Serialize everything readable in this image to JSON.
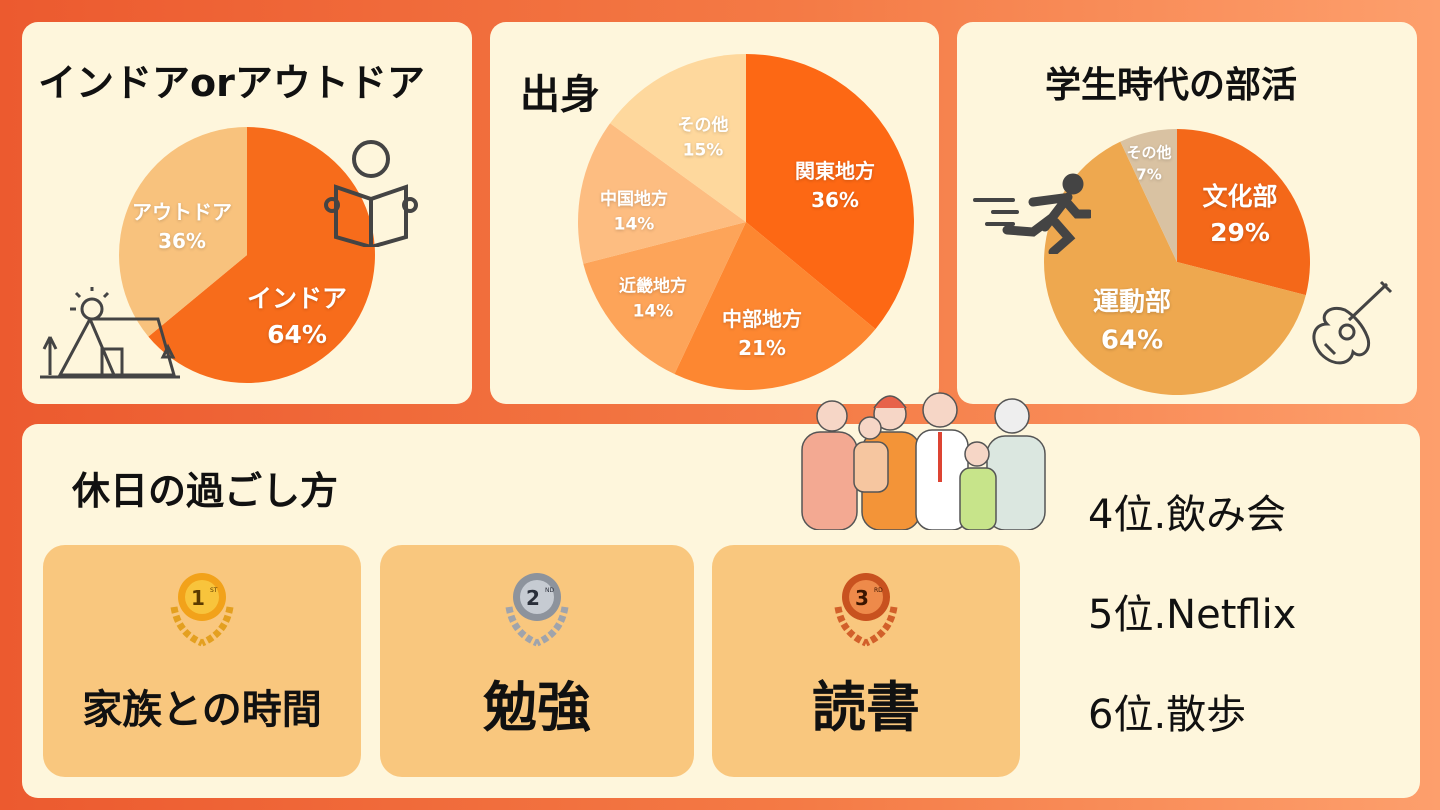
{
  "chart_data": [
    {
      "type": "pie",
      "title": "インドアorアウトドア",
      "slices": [
        {
          "label": "インドア",
          "value": 64,
          "display": "64%",
          "color": "#f76c1b"
        },
        {
          "label": "アウトドア",
          "value": 36,
          "display": "36%",
          "color": "#f8c27d"
        }
      ]
    },
    {
      "type": "pie",
      "title": "出身",
      "slices": [
        {
          "label": "関東地方",
          "value": 36,
          "display": "36%",
          "color": "#fd6814"
        },
        {
          "label": "中部地方",
          "value": 21,
          "display": "21%",
          "color": "#fd8731"
        },
        {
          "label": "近畿地方",
          "value": 14,
          "display": "14%",
          "color": "#fda459"
        },
        {
          "label": "中国地方",
          "value": 14,
          "display": "14%",
          "color": "#fdbd81"
        },
        {
          "label": "その他",
          "value": 15,
          "display": "15%",
          "color": "#fed89d"
        }
      ]
    },
    {
      "type": "pie",
      "title": "学生時代の部活",
      "slices": [
        {
          "label": "文化部",
          "value": 29,
          "display": "29%",
          "color": "#f46819"
        },
        {
          "label": "運動部",
          "value": 64,
          "display": "64%",
          "color": "#eea84f"
        },
        {
          "label": "その他",
          "value": 7,
          "display": "7%",
          "color": "#d9c2a2"
        }
      ]
    }
  ],
  "holiday": {
    "title": "休日の過ごし方",
    "top3": [
      {
        "rank": "1",
        "suffix": "ST",
        "label": "家族との時間",
        "medal_color": "#f2a21a"
      },
      {
        "rank": "2",
        "suffix": "ND",
        "label": "勉強",
        "medal_color": "#9aa0aa"
      },
      {
        "rank": "3",
        "suffix": "RD",
        "label": "読書",
        "medal_color": "#d2602a"
      }
    ],
    "others": [
      "4位.飲み会",
      "5位.Netflix",
      "6位.散歩"
    ]
  }
}
